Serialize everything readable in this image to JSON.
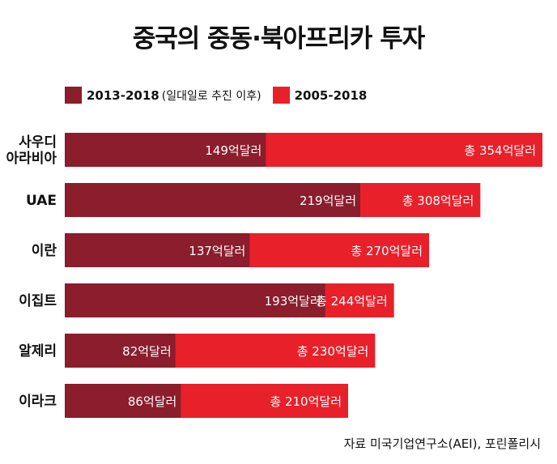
{
  "colors": {
    "recent": "#8b1d2c",
    "total": "#e8202a",
    "title": "#111111"
  },
  "chart_data": {
    "type": "bar",
    "orientation": "horizontal",
    "stacking": "overlay",
    "title": "중국의 중동·북아프리카 투자",
    "unit": "억달러",
    "categories": [
      [
        "사우디",
        "아라비아"
      ],
      [
        "UAE"
      ],
      [
        "이란"
      ],
      [
        "이집트"
      ],
      [
        "알제리"
      ],
      [
        "이라크"
      ]
    ],
    "series": [
      {
        "name": "2013-2018",
        "note": "(일대일로 추진 이후)",
        "values": [
          149,
          219,
          137,
          193,
          82,
          86
        ],
        "labels": [
          "149억달러",
          "219억달러",
          "137억달러",
          "193억달러",
          "82억달러",
          "86억달러"
        ]
      },
      {
        "name": "2005-2018",
        "values": [
          354,
          308,
          270,
          244,
          230,
          210
        ],
        "labels": [
          "총 354억달러",
          "총 308억달러",
          "총 270억달러",
          "총 244억달러",
          "총 230억달러",
          "총 210억달러"
        ]
      }
    ],
    "xlim": [
      0,
      354
    ],
    "grid": false,
    "legend": "top-left",
    "source": "자료 미국기업연구소(AEI), 포린폴리시"
  }
}
